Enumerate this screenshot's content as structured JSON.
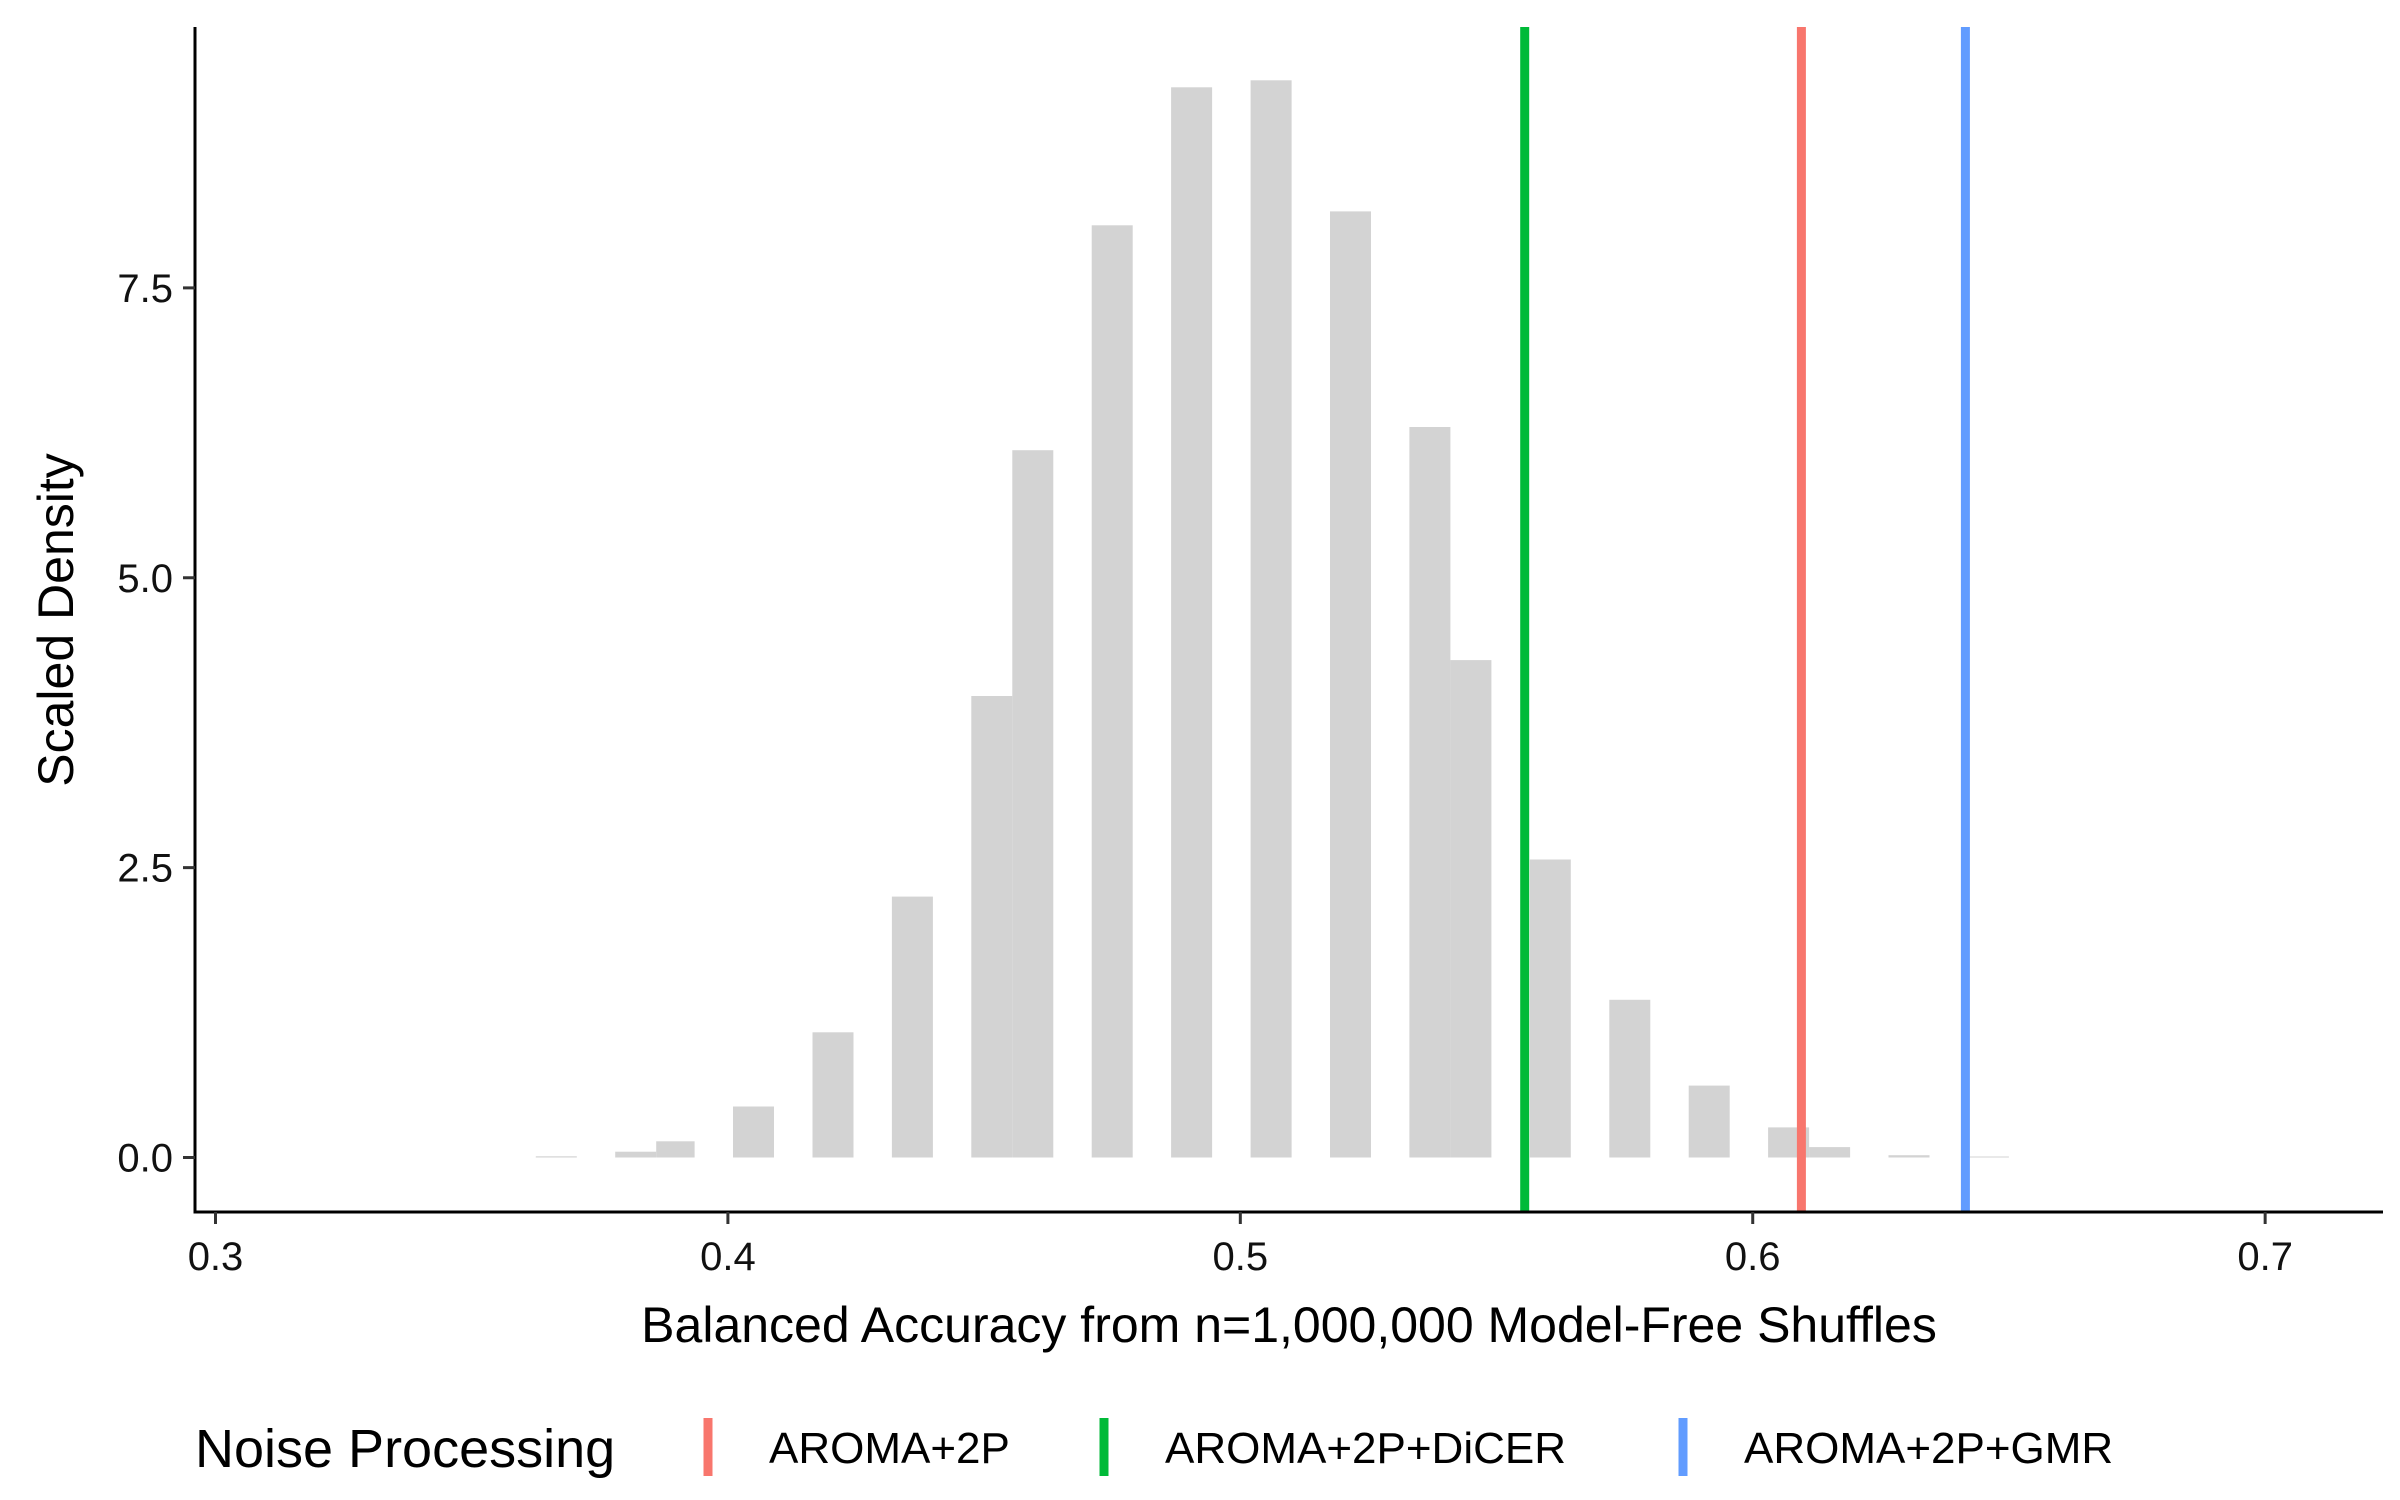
{
  "chart_data": {
    "type": "bar",
    "xlabel": "Balanced Accuracy from n=1,000,000 Model-Free Shuffles",
    "ylabel": "Scaled Density",
    "xlim": [
      0.296,
      0.723
    ],
    "ylim": [
      -0.47,
      9.75
    ],
    "x_ticks": [
      0.3,
      0.4,
      0.5,
      0.6,
      0.7
    ],
    "x_tick_labels": [
      "0.3",
      "0.4",
      "0.5",
      "0.6",
      "0.7"
    ],
    "y_ticks": [
      0.0,
      2.5,
      5.0,
      7.5
    ],
    "y_tick_labels": [
      "0.0",
      "2.5",
      "5.0",
      "7.5"
    ],
    "grid": false,
    "bar_color": "#d3d3d3",
    "bars": [
      {
        "x0": 0.3625,
        "x1": 0.3705,
        "value": 0.01
      },
      {
        "x0": 0.378,
        "x1": 0.386,
        "value": 0.05
      },
      {
        "x0": 0.386,
        "x1": 0.3935,
        "value": 0.14
      },
      {
        "x0": 0.401,
        "x1": 0.409,
        "value": 0.44
      },
      {
        "x0": 0.4165,
        "x1": 0.4245,
        "value": 1.08
      },
      {
        "x0": 0.432,
        "x1": 0.44,
        "value": 2.25
      },
      {
        "x0": 0.4475,
        "x1": 0.4555,
        "value": 3.98
      },
      {
        "x0": 0.4555,
        "x1": 0.4635,
        "value": 6.1
      },
      {
        "x0": 0.471,
        "x1": 0.479,
        "value": 8.04
      },
      {
        "x0": 0.4865,
        "x1": 0.4945,
        "value": 9.23
      },
      {
        "x0": 0.502,
        "x1": 0.51,
        "value": 9.29
      },
      {
        "x0": 0.5175,
        "x1": 0.5255,
        "value": 8.16
      },
      {
        "x0": 0.533,
        "x1": 0.541,
        "value": 6.3
      },
      {
        "x0": 0.541,
        "x1": 0.549,
        "value": 4.29
      },
      {
        "x0": 0.5565,
        "x1": 0.5645,
        "value": 2.57
      },
      {
        "x0": 0.572,
        "x1": 0.58,
        "value": 1.36
      },
      {
        "x0": 0.5875,
        "x1": 0.5955,
        "value": 0.62
      },
      {
        "x0": 0.603,
        "x1": 0.611,
        "value": 0.26
      },
      {
        "x0": 0.611,
        "x1": 0.619,
        "value": 0.09
      },
      {
        "x0": 0.6265,
        "x1": 0.6345,
        "value": 0.02
      },
      {
        "x0": 0.642,
        "x1": 0.65,
        "value": 0.005
      }
    ],
    "reference_lines": [
      {
        "name": "AROMA+2P",
        "x": 0.6095,
        "color": "#f8766d"
      },
      {
        "name": "AROMA+2P+DiCER",
        "x": 0.5555,
        "color": "#00ba38"
      },
      {
        "name": "AROMA+2P+GMR",
        "x": 0.6415,
        "color": "#619cff"
      }
    ],
    "legend": {
      "title": "Noise Processing",
      "placement": "bottom",
      "items": [
        {
          "label": "AROMA+2P",
          "color": "#f8766d"
        },
        {
          "label": "AROMA+2P+DiCER",
          "color": "#00ba38"
        },
        {
          "label": "AROMA+2P+GMR",
          "color": "#619cff"
        }
      ]
    }
  }
}
